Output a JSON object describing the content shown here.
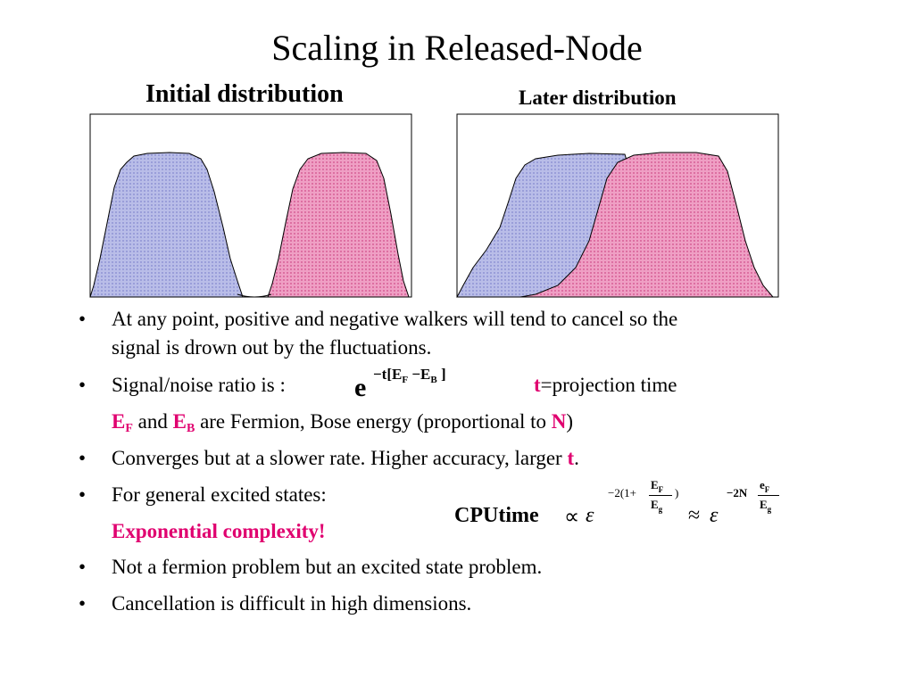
{
  "slide": {
    "title": "Scaling in Released-Node",
    "left_heading": "Initial distribution",
    "right_heading": "Later distribution"
  },
  "colors": {
    "positive_fill": "#b9bde8",
    "negative_fill": "#ef9fc4",
    "accent": "#e0006f"
  },
  "bullets": {
    "b1_line1": "At any point, positive and negative walkers will tend to cancel so the",
    "b1_line2": "signal is drown out by the fluctuations.",
    "b2_text": "Signal/noise ratio is :",
    "b2_t": "t",
    "b2_rest": "=projection time",
    "b2_sub_EF": "E",
    "b2_sub_EF_idx": "F",
    "b2_sub_and": " and ",
    "b2_sub_EB": "E",
    "b2_sub_EB_idx": "B",
    "b2_sub_rest": " are Fermion, Bose energy (proportional to ",
    "b2_sub_N": "N",
    "b2_sub_close": ")",
    "b3_text": "Converges but at a slower rate. Higher accuracy, larger ",
    "b3_t": "t",
    "b3_period": ".",
    "b4_text": "For general excited states:",
    "b4_sub": "Exponential complexity!",
    "b5_text": "Not a fermion problem but an excited state problem.",
    "b6_text": "Cancellation is difficult in high dimensions."
  },
  "formulas": {
    "snr_base": "e",
    "snr_exp": "−t[E",
    "snr_exp_F": "F",
    "snr_exp_mid": " −E",
    "snr_exp_B": "B",
    "snr_exp_end": " ]",
    "cpu_label": "CPUtime",
    "propto": "∝",
    "epsilon": "ε",
    "exp1_pre": "−2(1+",
    "exp1_num": "E",
    "exp1_num_idx": "F",
    "exp1_den": "E",
    "exp1_den_idx": "g",
    "exp1_post": ")",
    "approx": "≈",
    "exp2_pre": "−2N",
    "exp2_num": "e",
    "exp2_num_idx": "F",
    "exp2_den": "E",
    "exp2_den_idx": "g"
  }
}
